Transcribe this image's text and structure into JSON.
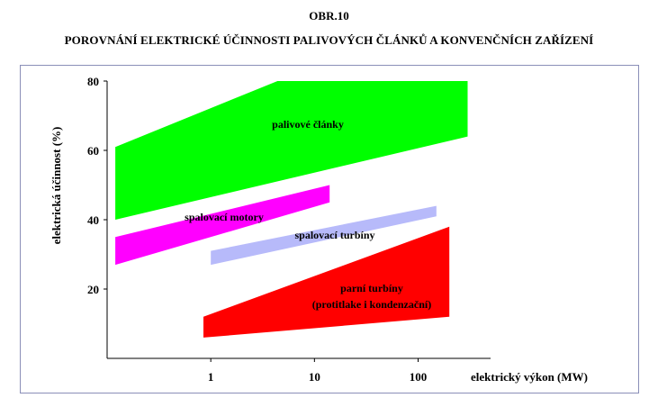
{
  "figure_label": "OBR.10",
  "chart_data": {
    "type": "area",
    "title": "POROVNÁNÍ ELEKTRICKÉ ÚČINNOSTI PALIVOVÝCH ČLÁNKŮ A KONVENČNÍCH ZAŘÍZENÍ",
    "xlabel": "elektrický výkon (MW)",
    "ylabel": "elektrická účinnost    (%)",
    "x_scale": "log",
    "xlim": [
      0.1,
      500
    ],
    "ylim": [
      0,
      80
    ],
    "x_ticks": [
      "1",
      "10",
      "100"
    ],
    "x_tick_values": [
      1,
      10,
      100
    ],
    "y_ticks": [
      "20",
      "40",
      "60",
      "80"
    ],
    "y_tick_values": [
      20,
      40,
      60,
      80
    ],
    "series": [
      {
        "name": "palivové články",
        "label": "palivové články",
        "color": "#00ff00",
        "polygon": [
          [
            0.12,
            40
          ],
          [
            0.12,
            61
          ],
          [
            4.4,
            80
          ],
          [
            300,
            80
          ],
          [
            300,
            64
          ]
        ]
      },
      {
        "name": "spalovací motory",
        "label": "spalovací motory",
        "color": "#ff00ff",
        "polygon": [
          [
            0.12,
            27
          ],
          [
            0.12,
            35
          ],
          [
            14,
            50
          ],
          [
            14,
            45
          ]
        ]
      },
      {
        "name": "spalovací turbíny",
        "label": "spalovací turbíny",
        "color": "#b7bafa",
        "polygon": [
          [
            1,
            27
          ],
          [
            1,
            31
          ],
          [
            150,
            44
          ],
          [
            150,
            41
          ]
        ]
      },
      {
        "name": "parní turbíny (protitlake i kondenzační)",
        "label": "parní turbíny",
        "label2": "(protitlake i kondenzační)",
        "color": "#ff0000",
        "polygon": [
          [
            0.85,
            6
          ],
          [
            0.85,
            12
          ],
          [
            200,
            38
          ],
          [
            200,
            12
          ]
        ]
      }
    ]
  }
}
